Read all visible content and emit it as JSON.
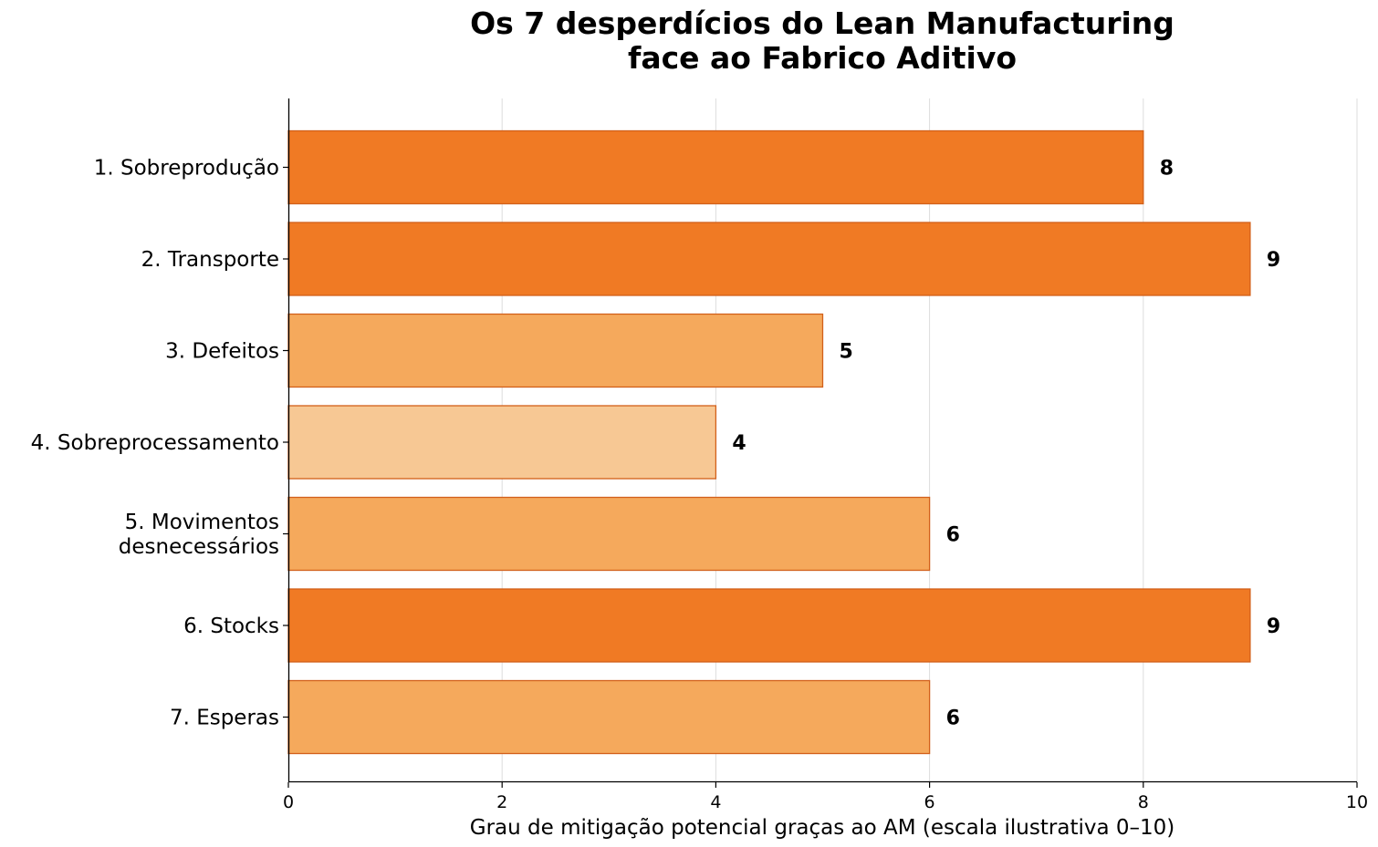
{
  "chart_data": {
    "type": "bar",
    "orientation": "horizontal",
    "title": [
      "Os 7 desperdícios do Lean Manufacturing",
      "face ao Fabrico Aditivo"
    ],
    "xlabel": "Grau de mitigação potencial graças ao AM (escala ilustrativa 0–10)",
    "ylabel": "",
    "xlim": [
      0,
      10
    ],
    "xticks": [
      "0",
      "2",
      "4",
      "6",
      "8",
      "10"
    ],
    "grid": "vertical",
    "categories": [
      [
        "1. Sobreprodução"
      ],
      [
        "2. Transporte"
      ],
      [
        "3. Defeitos"
      ],
      [
        "4. Sobreprocessamento"
      ],
      [
        "5. Movimentos",
        "desnecessários"
      ],
      [
        "6. Stocks"
      ],
      [
        "7. Esperas"
      ]
    ],
    "values": [
      8,
      9,
      5,
      4,
      6,
      9,
      6
    ],
    "value_labels": [
      "8",
      "9",
      "5",
      "4",
      "6",
      "9",
      "6"
    ],
    "colors": [
      "#f07a24",
      "#f07a24",
      "#f5a95c",
      "#f7c894",
      "#f5a95c",
      "#f07a24",
      "#f5a95c"
    ],
    "edge_color": "#d2601a"
  }
}
